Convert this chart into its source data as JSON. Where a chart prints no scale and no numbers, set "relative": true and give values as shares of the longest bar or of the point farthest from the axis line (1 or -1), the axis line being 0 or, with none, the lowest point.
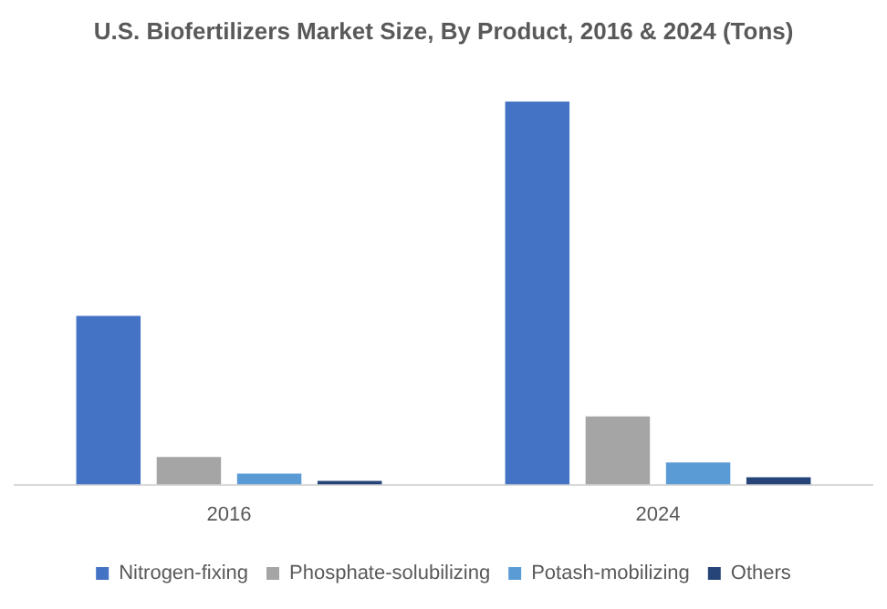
{
  "chart_data": {
    "type": "bar",
    "title": "U.S. Biofertilizers Market Size, By Product, 2016 & 2024 (Tons)",
    "categories": [
      "2016",
      "2024"
    ],
    "relative": true,
    "legend": "bottom",
    "grid": false,
    "series": [
      {
        "name": "Nitrogen-fixing",
        "color": "#4472c4",
        "values": [
          0.44,
          1
        ]
      },
      {
        "name": "Phosphate-solubilizing",
        "color": "#a5a5a5",
        "values": [
          0.072,
          0.178
        ]
      },
      {
        "name": "Potash-mobilizing",
        "color": "#5b9bd5",
        "values": [
          0.029,
          0.058
        ]
      },
      {
        "name": "Others",
        "color": "#264478",
        "values": [
          0.01,
          0.019
        ]
      }
    ]
  }
}
